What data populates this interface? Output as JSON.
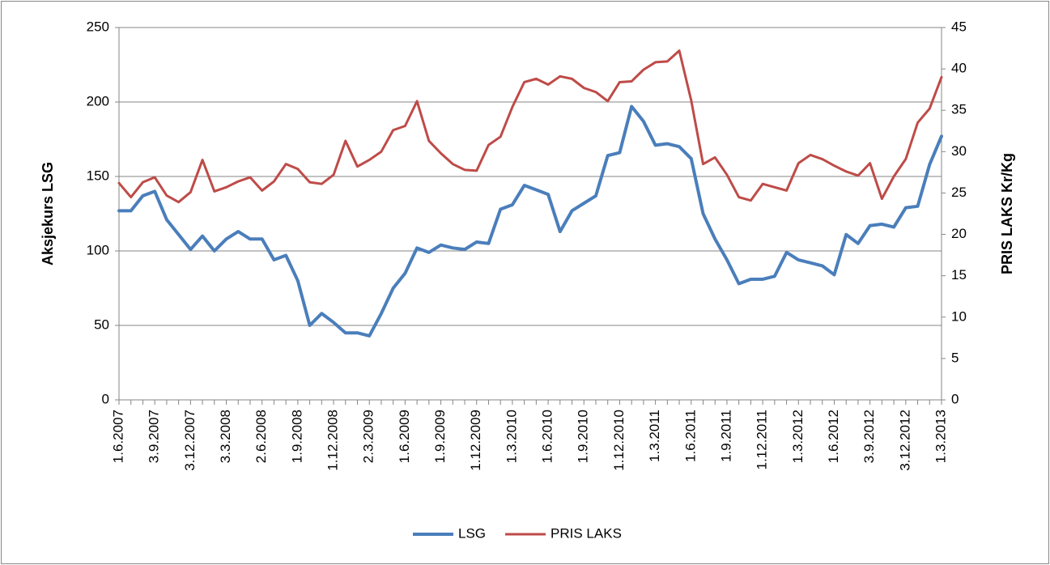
{
  "chart_data": {
    "type": "line",
    "categories": [
      "1.6.2007",
      null,
      null,
      "3.9.2007",
      null,
      null,
      "3.12.2007",
      null,
      null,
      "3.3.2008",
      null,
      null,
      "2.6.2008",
      null,
      null,
      "1.9.2008",
      null,
      null,
      "1.12.2008",
      null,
      null,
      "2.3.2009",
      null,
      null,
      "1.6.2009",
      null,
      null,
      "1.9.2009",
      null,
      null,
      "1.12.2009",
      null,
      null,
      "1.3.2010",
      null,
      null,
      "1.6.2010",
      null,
      null,
      "1.9.2010",
      null,
      null,
      "1.12.2010",
      null,
      null,
      "1.3.2011",
      null,
      null,
      "1.6.2011",
      null,
      null,
      "1.9.2011",
      null,
      null,
      "1.12.2011",
      null,
      null,
      "1.3.2012",
      null,
      null,
      "1.6.2012",
      null,
      null,
      "3.9.2012",
      null,
      null,
      "3.12.2012",
      null,
      null,
      "1.3.2013"
    ],
    "series": [
      {
        "name": "LSG",
        "color": "#4a7ebb",
        "values": [
          127,
          127,
          137,
          140,
          121,
          111,
          101,
          110,
          100,
          108,
          113,
          108,
          108,
          94,
          97,
          80,
          50,
          58,
          52,
          45,
          45,
          43,
          58,
          75,
          85,
          102,
          99,
          104,
          102,
          101,
          106,
          105,
          128,
          131,
          144,
          141,
          138,
          113,
          127,
          132,
          137,
          164,
          166,
          197,
          187,
          171,
          172,
          170,
          162,
          125,
          108,
          94,
          78,
          81,
          81,
          83,
          99,
          94,
          92,
          90,
          84,
          111,
          105,
          117,
          118,
          116,
          129,
          130,
          158,
          177
        ]
      },
      {
        "name": "PRIS LAKS",
        "color": "#be4b48",
        "axis": "y2",
        "values": [
          26.2,
          24.5,
          26.3,
          26.9,
          24.7,
          23.9,
          25.1,
          29,
          25.2,
          25.7,
          26.4,
          26.9,
          25.3,
          26.4,
          28.5,
          27.9,
          26.3,
          26.1,
          27.2,
          31.3,
          28.2,
          29,
          30,
          32.6,
          33.1,
          36.1,
          31.3,
          29.8,
          28.5,
          27.8,
          27.7,
          30.8,
          31.8,
          35.4,
          38.4,
          38.8,
          38.1,
          39.1,
          38.8,
          37.7,
          37.2,
          36.1,
          38.4,
          38.5,
          39.9,
          40.8,
          40.9,
          42.2,
          36.2,
          28.5,
          29.3,
          27.2,
          24.5,
          24.1,
          26.1,
          25.7,
          25.3,
          28.6,
          29.6,
          29.1,
          28.3,
          27.6,
          27.1,
          28.6,
          24.3,
          27,
          29.1,
          33.5,
          35.2,
          39
        ]
      }
    ],
    "ylabel": "Aksjekurs LSG",
    "y2label": "PRIS LAKS Kr/Kg",
    "ylim": [
      0,
      250
    ],
    "yticks": [
      0,
      50,
      100,
      150,
      200,
      250
    ],
    "y2lim": [
      0,
      45
    ],
    "y2ticks": [
      0,
      5,
      10,
      15,
      20,
      25,
      30,
      35,
      40,
      45
    ],
    "grid": true,
    "legend": "bottom"
  }
}
